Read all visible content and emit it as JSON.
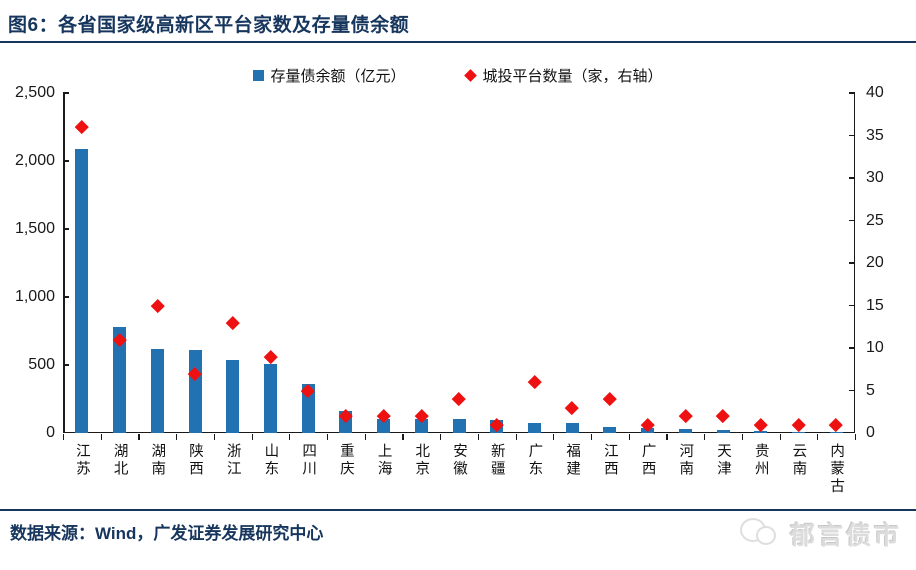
{
  "header": {
    "title": "图6：各省国家级高新区平台家数及存量债余额"
  },
  "legend": {
    "bars_label": "存量债余额（亿元）",
    "diamonds_label": "城投平台数量（家，右轴）"
  },
  "footer": {
    "source": "数据来源：Wind，广发证券发展研究中心",
    "logo_text": "郁言债市"
  },
  "colors": {
    "title_navy": "#17365D",
    "bar_blue": "#2272B2",
    "marker_red": "#EE1111",
    "axis_black": "#1a1a1a",
    "logo_gray": "#dcdcdc"
  },
  "icons": {
    "bar_swatch": "square-icon",
    "diamond_swatch": "diamond-icon",
    "logo": "chat-bubbles-icon"
  },
  "chart_data": {
    "type": "bar",
    "subtype": "bar-plus-scatter-dual-axis",
    "title": "各省国家级高新区平台家数及存量债余额",
    "grid": false,
    "legend_position": "top-center",
    "categories": [
      "江苏",
      "湖北",
      "湖南",
      "陕西",
      "浙江",
      "山东",
      "四川",
      "重庆",
      "上海",
      "北京",
      "安徽",
      "新疆",
      "广东",
      "福建",
      "江西",
      "广西",
      "河南",
      "天津",
      "贵州",
      "云南",
      "内蒙古"
    ],
    "series": [
      {
        "name": "存量债余额（亿元）",
        "type": "bar",
        "axis": "left",
        "values": [
          2090,
          780,
          620,
          610,
          540,
          510,
          360,
          160,
          105,
          100,
          100,
          95,
          70,
          70,
          45,
          40,
          30,
          20,
          12,
          8,
          5
        ]
      },
      {
        "name": "城投平台数量（家，右轴）",
        "type": "scatter",
        "marker": "diamond",
        "axis": "right",
        "values": [
          36,
          11,
          15,
          7,
          13,
          9,
          5,
          2,
          2,
          2,
          4,
          1,
          6,
          3,
          4,
          1,
          2,
          2,
          1,
          1,
          1
        ]
      }
    ],
    "left_axis": {
      "min": 0,
      "max": 2500,
      "step": 500,
      "tick_labels": [
        "0",
        "500",
        "1,000",
        "1,500",
        "2,000",
        "2,500"
      ]
    },
    "right_axis": {
      "min": 0,
      "max": 40,
      "step": 5,
      "tick_labels": [
        "0",
        "5",
        "10",
        "15",
        "20",
        "25",
        "30",
        "35",
        "40"
      ]
    }
  }
}
